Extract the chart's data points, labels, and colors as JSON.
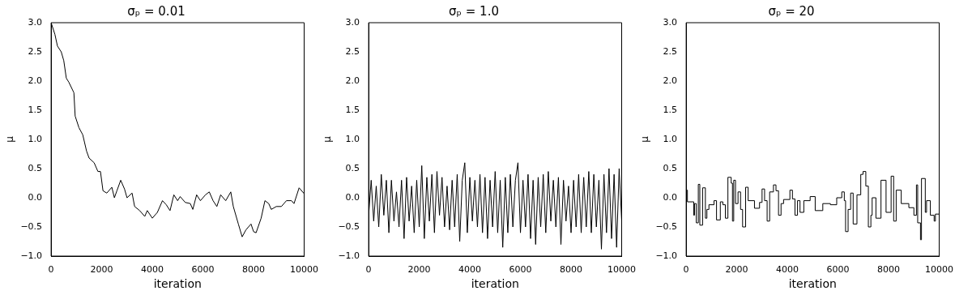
{
  "chart_data": [
    {
      "type": "line",
      "title": "σₚ = 0.01",
      "xlabel": "iteration",
      "ylabel": "μ",
      "xlim": [
        0,
        10000
      ],
      "ylim": [
        -1.0,
        3.0
      ],
      "xticks": [
        0,
        2000,
        4000,
        6000,
        8000,
        10000
      ],
      "yticks": [
        {
          "value": -1,
          "label": "−1.0"
        },
        {
          "value": -0.5,
          "label": "−0.5"
        },
        {
          "value": 0,
          "label": "0.0"
        },
        {
          "value": 0.5,
          "label": "0.5"
        },
        {
          "value": 1,
          "label": "1.0"
        },
        {
          "value": 1.5,
          "label": "1.5"
        },
        {
          "value": 2,
          "label": "2.0"
        },
        {
          "value": 2.5,
          "label": "2.5"
        },
        {
          "value": 3,
          "label": "3.0"
        }
      ],
      "grid": false,
      "legend": false,
      "series": [
        {
          "color": "#000000",
          "x": [
            0,
            150,
            250,
            400,
            500,
            600,
            700,
            900,
            950,
            1100,
            1250,
            1400,
            1500,
            1700,
            1850,
            1950,
            2050,
            2200,
            2400,
            2500,
            2600,
            2750,
            2900,
            3000,
            3200,
            3300,
            3500,
            3700,
            3800,
            4000,
            4200,
            4400,
            4550,
            4700,
            4850,
            5000,
            5100,
            5300,
            5500,
            5600,
            5750,
            5900,
            6100,
            6250,
            6400,
            6550,
            6700,
            6900,
            7100,
            7200,
            7400,
            7550,
            7700,
            7900,
            8000,
            8100,
            8300,
            8450,
            8600,
            8700,
            8900,
            9100,
            9300,
            9500,
            9600,
            9800,
            10000
          ],
          "values": [
            3.0,
            2.8,
            2.6,
            2.5,
            2.35,
            2.05,
            1.98,
            1.8,
            1.4,
            1.2,
            1.08,
            0.8,
            0.68,
            0.6,
            0.45,
            0.45,
            0.12,
            0.08,
            0.18,
            0.0,
            0.12,
            0.3,
            0.15,
            0.0,
            0.08,
            -0.15,
            -0.22,
            -0.32,
            -0.22,
            -0.35,
            -0.25,
            -0.05,
            -0.12,
            -0.22,
            0.05,
            -0.05,
            0.02,
            -0.08,
            -0.1,
            -0.2,
            0.05,
            -0.05,
            0.05,
            0.1,
            -0.05,
            -0.15,
            0.05,
            -0.05,
            0.1,
            -0.15,
            -0.45,
            -0.67,
            -0.55,
            -0.45,
            -0.58,
            -0.6,
            -0.35,
            -0.05,
            -0.1,
            -0.2,
            -0.15,
            -0.15,
            -0.05,
            -0.05,
            -0.1,
            0.17,
            0.07
          ]
        }
      ]
    },
    {
      "type": "line",
      "title": "σₚ = 1.0",
      "xlabel": "iteration",
      "ylabel": "μ",
      "xlim": [
        0,
        10000
      ],
      "ylim": [
        -1.0,
        3.0
      ],
      "xticks": [
        0,
        2000,
        4000,
        6000,
        8000,
        10000
      ],
      "yticks": [
        {
          "value": -1,
          "label": "−1.0"
        },
        {
          "value": -0.5,
          "label": "−0.5"
        },
        {
          "value": 0,
          "label": "0.0"
        },
        {
          "value": 0.5,
          "label": "0.5"
        },
        {
          "value": 1,
          "label": "1.0"
        },
        {
          "value": 1.5,
          "label": "1.5"
        },
        {
          "value": 2,
          "label": "2.0"
        },
        {
          "value": 2.5,
          "label": "2.5"
        },
        {
          "value": 3,
          "label": "3.0"
        }
      ],
      "grid": false,
      "legend": false,
      "series": [
        {
          "color": "#000000",
          "x": [
            0,
            100,
            200,
            300,
            400,
            500,
            600,
            700,
            800,
            900,
            1000,
            1100,
            1200,
            1300,
            1400,
            1500,
            1600,
            1700,
            1800,
            1900,
            2000,
            2100,
            2200,
            2300,
            2400,
            2500,
            2600,
            2700,
            2800,
            2900,
            3000,
            3100,
            3200,
            3300,
            3400,
            3500,
            3600,
            3700,
            3800,
            3900,
            4000,
            4100,
            4200,
            4300,
            4400,
            4500,
            4600,
            4700,
            4800,
            4900,
            5000,
            5100,
            5200,
            5300,
            5400,
            5500,
            5600,
            5700,
            5800,
            5900,
            6000,
            6100,
            6200,
            6300,
            6400,
            6500,
            6600,
            6700,
            6800,
            6900,
            7000,
            7100,
            7200,
            7300,
            7400,
            7500,
            7600,
            7700,
            7800,
            7900,
            8000,
            8100,
            8200,
            8300,
            8400,
            8500,
            8600,
            8700,
            8800,
            8900,
            9000,
            9100,
            9200,
            9300,
            9400,
            9500,
            9600,
            9700,
            9800,
            9900,
            10000
          ],
          "values": [
            -0.3,
            0.3,
            -0.4,
            0.2,
            -0.5,
            0.4,
            -0.3,
            0.3,
            -0.6,
            0.3,
            -0.4,
            0.1,
            -0.5,
            0.3,
            -0.7,
            0.35,
            -0.4,
            0.2,
            -0.6,
            0.3,
            -0.5,
            0.55,
            -0.7,
            0.35,
            -0.4,
            0.4,
            -0.6,
            0.45,
            -0.3,
            0.35,
            -0.5,
            0.2,
            -0.55,
            0.3,
            -0.5,
            0.4,
            -0.75,
            0.3,
            0.6,
            -0.6,
            0.35,
            -0.4,
            0.3,
            -0.5,
            0.4,
            -0.6,
            0.35,
            -0.7,
            0.3,
            -0.5,
            0.45,
            -0.6,
            0.3,
            -0.85,
            0.35,
            -0.6,
            0.4,
            -0.5,
            0.3,
            0.6,
            -0.6,
            0.3,
            -0.5,
            0.4,
            -0.7,
            0.3,
            -0.8,
            0.35,
            -0.5,
            0.4,
            -0.6,
            0.45,
            -0.4,
            0.3,
            -0.5,
            0.35,
            -0.8,
            0.3,
            -0.4,
            0.2,
            -0.6,
            0.3,
            -0.5,
            0.4,
            -0.6,
            0.35,
            -0.5,
            0.45,
            -0.6,
            0.4,
            -0.5,
            0.3,
            -0.88,
            0.4,
            -0.6,
            0.5,
            -0.7,
            0.4,
            -0.85,
            0.5,
            -0.4
          ]
        }
      ]
    },
    {
      "type": "step",
      "title": "σₚ = 20",
      "xlabel": "iteration",
      "ylabel": "μ",
      "xlim": [
        0,
        10000
      ],
      "ylim": [
        -1.0,
        3.0
      ],
      "xticks": [
        0,
        2000,
        4000,
        6000,
        8000,
        10000
      ],
      "yticks": [
        {
          "value": -1,
          "label": "−1.0"
        },
        {
          "value": -0.5,
          "label": "−0.5"
        },
        {
          "value": 0,
          "label": "0.0"
        },
        {
          "value": 0.5,
          "label": "0.5"
        },
        {
          "value": 1,
          "label": "1.0"
        },
        {
          "value": 1.5,
          "label": "1.5"
        },
        {
          "value": 2,
          "label": "2.0"
        },
        {
          "value": 2.5,
          "label": "2.5"
        },
        {
          "value": 3,
          "label": "3.0"
        }
      ],
      "grid": false,
      "legend": false,
      "series": [
        {
          "color": "#000000",
          "x": [
            0,
            50,
            300,
            330,
            400,
            480,
            540,
            650,
            760,
            820,
            900,
            1100,
            1200,
            1350,
            1450,
            1550,
            1650,
            1780,
            1830,
            1880,
            1950,
            2050,
            2150,
            2230,
            2350,
            2450,
            2700,
            2900,
            3000,
            3100,
            3200,
            3300,
            3450,
            3550,
            3650,
            3750,
            3850,
            4100,
            4200,
            4300,
            4400,
            4500,
            4650,
            4900,
            5100,
            5400,
            5700,
            5950,
            6150,
            6250,
            6300,
            6400,
            6500,
            6600,
            6750,
            6900,
            6990,
            7100,
            7200,
            7300,
            7350,
            7500,
            7700,
            7900,
            8100,
            8200,
            8300,
            8500,
            8800,
            9000,
            9100,
            9150,
            9260,
            9300,
            9450,
            9500,
            9650,
            9800,
            9850,
            10000
          ],
          "values": [
            0.13,
            -0.07,
            -0.3,
            -0.1,
            -0.43,
            0.23,
            -0.47,
            0.17,
            -0.35,
            -0.2,
            -0.12,
            -0.05,
            -0.38,
            -0.07,
            -0.12,
            -0.35,
            0.35,
            0.25,
            -0.4,
            0.3,
            -0.1,
            0.1,
            -0.2,
            -0.5,
            0.18,
            -0.05,
            -0.18,
            -0.08,
            0.15,
            -0.05,
            -0.4,
            0.1,
            0.22,
            0.12,
            -0.3,
            -0.1,
            -0.03,
            0.13,
            -0.02,
            -0.3,
            -0.05,
            -0.25,
            -0.05,
            0.02,
            -0.22,
            -0.1,
            -0.12,
            0.0,
            0.1,
            -0.05,
            -0.58,
            -0.2,
            0.08,
            -0.45,
            0.05,
            0.4,
            0.45,
            0.2,
            -0.5,
            -0.3,
            0.0,
            -0.35,
            0.3,
            -0.25,
            0.37,
            -0.4,
            0.13,
            -0.1,
            -0.17,
            -0.3,
            0.22,
            -0.43,
            -0.72,
            0.33,
            -0.25,
            -0.05,
            -0.3,
            -0.4,
            -0.28,
            -0.28
          ]
        }
      ]
    }
  ]
}
